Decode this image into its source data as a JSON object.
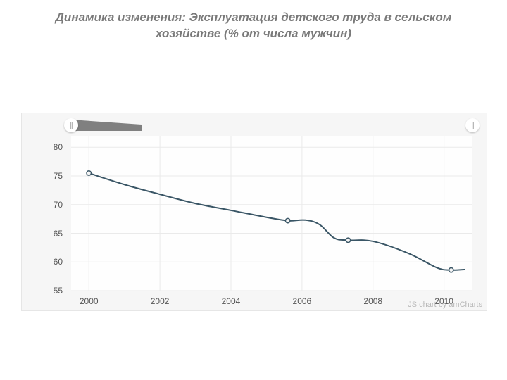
{
  "title": "Динамика изменения: Эксплуатация детского труда в сельском хозяйстве (% от числа мужчин)",
  "chart": {
    "type": "line",
    "background_color": "#f6f6f6",
    "plot_background_color": "#fefefe",
    "grid_color": "#eaeaea",
    "axis_text_color": "#555555",
    "axis_fontsize": 12,
    "title_color": "#7a7a7a",
    "title_fontsize": 17,
    "line_color": "#3a5666",
    "line_width": 2,
    "marker_fill": "#f6f6f6",
    "marker_stroke": "#3a5666",
    "marker_radius": 3.2,
    "xlim": [
      1999.5,
      2010.8
    ],
    "ylim": [
      55,
      82
    ],
    "yticks": [
      55,
      60,
      65,
      70,
      75,
      80
    ],
    "xticks": [
      2000,
      2002,
      2004,
      2006,
      2008,
      2010
    ],
    "ytick_labels": [
      "55",
      "60",
      "65",
      "70",
      "75",
      "80"
    ],
    "xtick_labels": [
      "2000",
      "2002",
      "2004",
      "2006",
      "2008",
      "2010"
    ],
    "series": {
      "name": "male_child_labor_agriculture_pct",
      "points": [
        {
          "x": 2000,
          "y": 75.5,
          "marker": true
        },
        {
          "x": 2001,
          "y": 73.5,
          "marker": false
        },
        {
          "x": 2002,
          "y": 71.8,
          "marker": false
        },
        {
          "x": 2003,
          "y": 70.2,
          "marker": false
        },
        {
          "x": 2004,
          "y": 69.0,
          "marker": false
        },
        {
          "x": 2005,
          "y": 67.8,
          "marker": false
        },
        {
          "x": 2005.6,
          "y": 67.2,
          "marker": true
        },
        {
          "x": 2006.1,
          "y": 67.3,
          "marker": false
        },
        {
          "x": 2006.5,
          "y": 66.5,
          "marker": false
        },
        {
          "x": 2006.9,
          "y": 64.2,
          "marker": false
        },
        {
          "x": 2007.3,
          "y": 63.8,
          "marker": true
        },
        {
          "x": 2008,
          "y": 63.6,
          "marker": false
        },
        {
          "x": 2009,
          "y": 61.5,
          "marker": false
        },
        {
          "x": 2009.8,
          "y": 59.0,
          "marker": false
        },
        {
          "x": 2010.2,
          "y": 58.6,
          "marker": true
        },
        {
          "x": 2010.6,
          "y": 58.7,
          "marker": false
        }
      ]
    },
    "scroller": {
      "band_color_dark": "#808080",
      "band_color_light": "#aeaeae",
      "handle_bg": "#ffffff",
      "handle_glyph": "||",
      "handle_left_pct": 0,
      "handle_right_pct": 100
    },
    "credit": "JS chart by amCharts"
  }
}
